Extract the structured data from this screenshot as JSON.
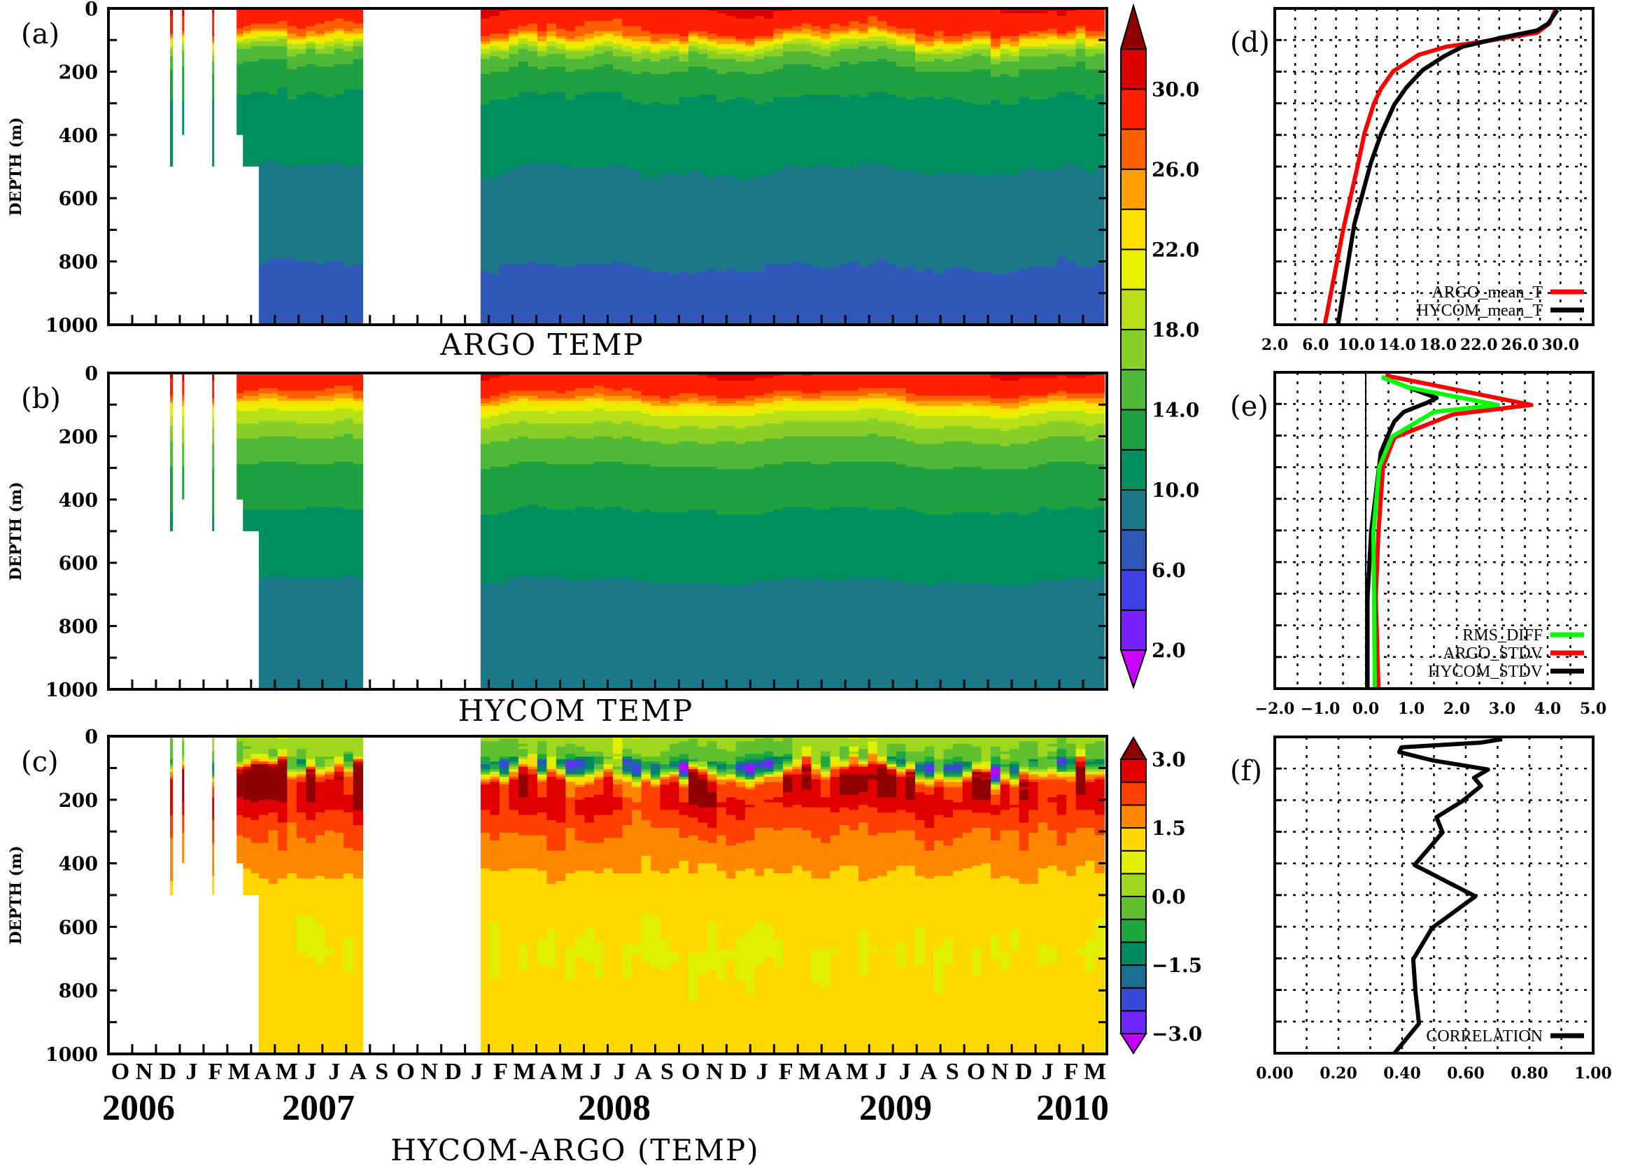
{
  "chart_data": [
    {
      "type": "heatmap",
      "label": "(a)",
      "title": "ARGO TEMP",
      "ylabel": "DEPTH (m)",
      "ylim": [
        0,
        1000
      ],
      "yticks": [
        "0",
        "200",
        "400",
        "600",
        "800",
        "1000"
      ],
      "xlim": [
        "2006-10-01",
        "2010-04-01"
      ],
      "coverage": [
        {
          "start": "2006-12-19",
          "end": "2006-12-22",
          "max_depth": 500
        },
        {
          "start": "2007-01-04",
          "end": "2007-01-06",
          "max_depth": 400
        },
        {
          "start": "2007-02-12",
          "end": "2007-02-14",
          "max_depth": 500
        },
        {
          "start": "2007-03-13",
          "end": "2007-03-21",
          "max_depth": 400
        },
        {
          "start": "2007-03-21",
          "end": "2007-04-11",
          "max_depth": 500
        },
        {
          "start": "2007-04-11",
          "end": "2007-08-22",
          "max_depth": 1000
        },
        {
          "start": "2008-01-21",
          "end": "2010-03-28",
          "max_depth": 1000
        }
      ],
      "colorbar": {
        "levels_min": 2,
        "levels_max": 32,
        "step": 2,
        "ticks": [
          {
            "value": 30,
            "label": "30.0"
          },
          {
            "value": 26,
            "label": "26.0"
          },
          {
            "value": 22,
            "label": "22.0"
          },
          {
            "value": 18,
            "label": "18.0"
          },
          {
            "value": 14,
            "label": "14.0"
          },
          {
            "value": 10,
            "label": "10.0"
          },
          {
            "value": 6,
            "label": "6.0"
          },
          {
            "value": 2,
            "label": "2.0"
          }
        ],
        "colors": [
          "#c800ff",
          "#7820ff",
          "#4040e8",
          "#3058b8",
          "#1a7888",
          "#009060",
          "#20a040",
          "#50b838",
          "#88d028",
          "#b8e018",
          "#e6f000",
          "#ffe000",
          "#ffa000",
          "#ff6000",
          "#ff2000",
          "#d80000",
          "#900000"
        ]
      }
    },
    {
      "type": "heatmap",
      "label": "(b)",
      "title": "HYCOM TEMP",
      "ylabel": "DEPTH (m)",
      "ylim": [
        0,
        1000
      ],
      "yticks": [
        "0",
        "200",
        "400",
        "600",
        "800",
        "1000"
      ],
      "xlim": [
        "2006-10-01",
        "2010-04-01"
      ]
    },
    {
      "type": "heatmap",
      "label": "(c)",
      "title": "HYCOM-ARGO (TEMP)",
      "ylabel": "DEPTH (m)",
      "ylim": [
        0,
        1000
      ],
      "yticks": [
        "0",
        "200",
        "400",
        "600",
        "800",
        "1000"
      ],
      "xlim": [
        "2006-10-01",
        "2010-04-01"
      ],
      "xtick_labels": [
        "O",
        "N",
        "D",
        "J",
        "F",
        "M",
        "A",
        "M",
        "J",
        "J",
        "A",
        "S",
        "O",
        "N",
        "D",
        "J",
        "F",
        "M",
        "A",
        "M",
        "J",
        "J",
        "A",
        "S",
        "O",
        "N",
        "D",
        "J",
        "F",
        "M",
        "A",
        "M",
        "J",
        "J",
        "A",
        "S",
        "O",
        "N",
        "D",
        "J",
        "F",
        "M"
      ],
      "year_labels": [
        "2006",
        "2007",
        "2008",
        "2009",
        "2010"
      ],
      "colorbar": {
        "levels_min": -3,
        "levels_max": 3,
        "step": 0.5,
        "ticks": [
          {
            "value": 3,
            "label": "3.0"
          },
          {
            "value": 1.5,
            "label": "1.5"
          },
          {
            "value": 0,
            "label": "0.0"
          },
          {
            "value": -1.5,
            "label": "−1.5"
          },
          {
            "value": -3,
            "label": "−3.0"
          }
        ],
        "colors": [
          "#c000ff",
          "#7028ff",
          "#3a48d8",
          "#1a6e90",
          "#008860",
          "#20a840",
          "#60c030",
          "#a0d820",
          "#e0f000",
          "#ffd800",
          "#ff8800",
          "#ff4000",
          "#e00000",
          "#900000"
        ]
      }
    },
    {
      "type": "line",
      "label": "(d)",
      "xlim": [
        2.0,
        33.2
      ],
      "ylim": [
        0,
        1000
      ],
      "xticks": [
        {
          "value": 2,
          "label": "2.0"
        },
        {
          "value": 6,
          "label": "6.0"
        },
        {
          "value": 10,
          "label": "10.0"
        },
        {
          "value": 14,
          "label": "14.0"
        },
        {
          "value": 18,
          "label": "18.0"
        },
        {
          "value": 22,
          "label": "22.0"
        },
        {
          "value": 26,
          "label": "26.0"
        },
        {
          "value": 30,
          "label": "30.0"
        }
      ],
      "grid": true,
      "legend": "bottom-right",
      "series": [
        {
          "name": "ARGO_mean_T",
          "color": "#ff0000",
          "depth": [
            5,
            48,
            77,
            107,
            121,
            147,
            199,
            254,
            302,
            394,
            501,
            700,
            1000
          ],
          "value": [
            29.5,
            28.9,
            27.7,
            22.0,
            18.8,
            16.1,
            13.6,
            12.4,
            11.7,
            10.8,
            10.1,
            8.7,
            6.9
          ]
        },
        {
          "name": "HYCOM_mean_T",
          "color": "#000000",
          "depth": [
            5,
            48,
            70,
            92,
            121,
            151,
            195,
            250,
            305,
            398,
            490,
            681,
            1000
          ],
          "value": [
            29.7,
            28.8,
            27.7,
            24.3,
            20.4,
            18.6,
            16.5,
            14.9,
            13.7,
            12.4,
            11.4,
            9.8,
            8.2
          ]
        }
      ]
    },
    {
      "type": "line",
      "label": "(e)",
      "xlim": [
        -2.0,
        5.0
      ],
      "ylim": [
        0,
        1000
      ],
      "xticks": [
        {
          "value": -2,
          "label": "−2.0"
        },
        {
          "value": -1,
          "label": "−1.0"
        },
        {
          "value": 0,
          "label": "0.0"
        },
        {
          "value": 1,
          "label": "1.0"
        },
        {
          "value": 2,
          "label": "2.0"
        },
        {
          "value": 3,
          "label": "3.0"
        },
        {
          "value": 4,
          "label": "4.0"
        },
        {
          "value": 5,
          "label": "5.0"
        }
      ],
      "grid": true,
      "legend": "bottom-right",
      "series": [
        {
          "name": "HYCOM_STDV",
          "color": "#000000",
          "depth": [
            15,
            48,
            81,
            96,
            125,
            155,
            195,
            254,
            504,
            711,
            1000
          ],
          "value": [
            0.35,
            0.94,
            1.56,
            1.35,
            0.84,
            0.63,
            0.5,
            0.33,
            0.12,
            0.04,
            0.04
          ]
        },
        {
          "name": "ARGO_STDV",
          "color": "#ff0000",
          "depth": [
            10,
            103,
            133,
            206,
            298,
            504,
            711,
            1000
          ],
          "value": [
            0.43,
            3.64,
            1.92,
            0.63,
            0.38,
            0.28,
            0.22,
            0.28
          ]
        },
        {
          "name": "RMS_DIFF",
          "color": "#00ff00",
          "depth": [
            15,
            48,
            103,
            125,
            203,
            298,
            504,
            1000
          ],
          "value": [
            0.35,
            0.94,
            2.9,
            1.5,
            0.58,
            0.3,
            0.17,
            0.2
          ]
        }
      ]
    },
    {
      "type": "line",
      "label": "(f)",
      "xlim": [
        0.0,
        1.0
      ],
      "ylim": [
        0,
        1000
      ],
      "xticks": [
        {
          "value": 0,
          "label": "0.00"
        },
        {
          "value": 0.2,
          "label": "0.20"
        },
        {
          "value": 0.4,
          "label": "0.40"
        },
        {
          "value": 0.6,
          "label": "0.60"
        },
        {
          "value": 0.8,
          "label": "0.80"
        },
        {
          "value": 1.0,
          "label": "1.00"
        }
      ],
      "grid": true,
      "legend": "bottom-right",
      "series": [
        {
          "name": "CORRELATION",
          "color": "#000000",
          "depth": [
            7,
            18,
            33,
            48,
            74,
            103,
            129,
            155,
            203,
            254,
            302,
            405,
            504,
            604,
            703,
            806,
            906,
            1000
          ],
          "value": [
            0.714,
            0.648,
            0.398,
            0.391,
            0.494,
            0.67,
            0.626,
            0.648,
            0.589,
            0.508,
            0.527,
            0.439,
            0.63,
            0.494,
            0.435,
            0.442,
            0.453,
            0.376
          ]
        }
      ]
    }
  ]
}
